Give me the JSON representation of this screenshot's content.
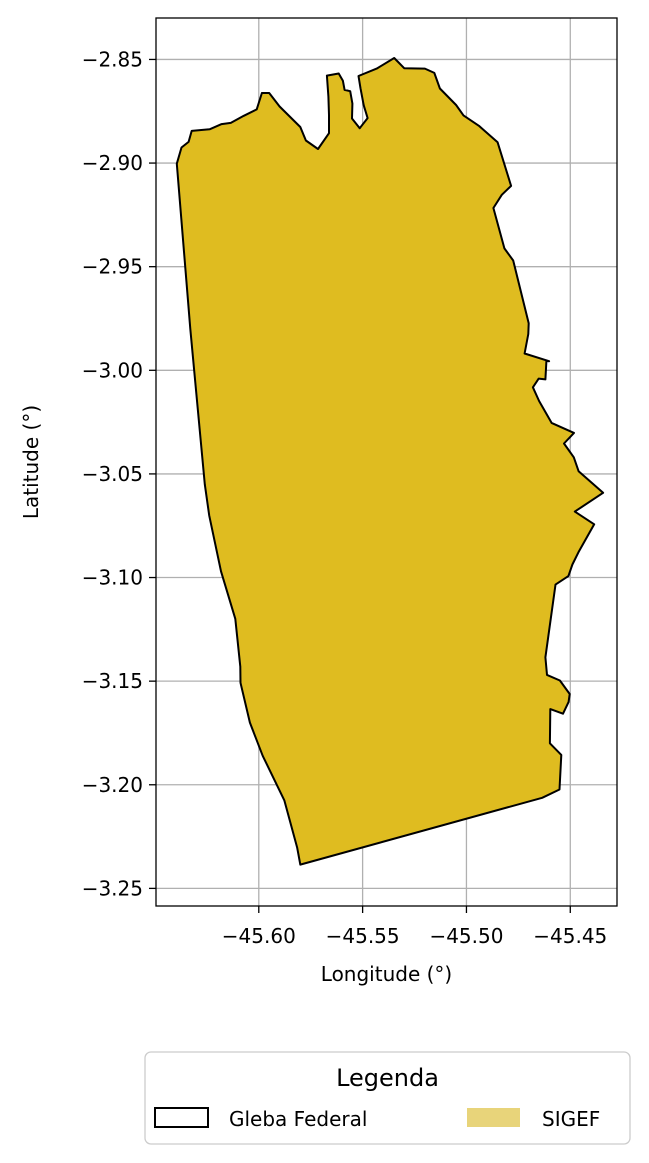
{
  "chart_data": {
    "type": "map",
    "xlabel": "Longitude (°)",
    "ylabel": "Latitude (°)",
    "xlim": [
      -45.6495,
      -45.4275
    ],
    "ylim": [
      -3.2585,
      -2.83
    ],
    "xticks": [
      -45.6,
      -45.55,
      -45.5,
      -45.45
    ],
    "xtick_labels": [
      "−45.60",
      "−45.55",
      "−45.50",
      "−45.45"
    ],
    "yticks": [
      -2.85,
      -2.9,
      -2.95,
      -3.0,
      -3.05,
      -3.1,
      -3.15,
      -3.2,
      -3.25
    ],
    "ytick_labels": [
      "−2.85",
      "−2.90",
      "−2.95",
      "−3.00",
      "−3.05",
      "−3.10",
      "−3.15",
      "−3.20",
      "−3.25"
    ],
    "grid": true,
    "legend": {
      "title": "Legenda",
      "placement": "bottom",
      "entries": [
        {
          "label": "Gleba Federal",
          "style": "outline",
          "color": "#000000"
        },
        {
          "label": "SIGEF",
          "style": "fill",
          "color": "#e8d47a"
        }
      ]
    },
    "polygon": {
      "fill": "#dfbc20",
      "stroke": "#000000",
      "coords": [
        [
          -45.6395,
          -2.9003
        ],
        [
          -45.6372,
          -2.8925
        ],
        [
          -45.6338,
          -2.8898
        ],
        [
          -45.6323,
          -2.8845
        ],
        [
          -45.6237,
          -2.8837
        ],
        [
          -45.6179,
          -2.8812
        ],
        [
          -45.6135,
          -2.8806
        ],
        [
          -45.6072,
          -2.8772
        ],
        [
          -45.601,
          -2.8741
        ],
        [
          -45.5985,
          -2.8662
        ],
        [
          -45.595,
          -2.8662
        ],
        [
          -45.59,
          -2.8727
        ],
        [
          -45.58,
          -2.8826
        ],
        [
          -45.5773,
          -2.8891
        ],
        [
          -45.5715,
          -2.8932
        ],
        [
          -45.5662,
          -2.8856
        ],
        [
          -45.5662,
          -2.8768
        ],
        [
          -45.5665,
          -2.868
        ],
        [
          -45.5672,
          -2.8578
        ],
        [
          -45.5615,
          -2.8568
        ],
        [
          -45.5595,
          -2.8603
        ],
        [
          -45.5587,
          -2.8647
        ],
        [
          -45.556,
          -2.8653
        ],
        [
          -45.5549,
          -2.8713
        ],
        [
          -45.5551,
          -2.8785
        ],
        [
          -45.5514,
          -2.8832
        ],
        [
          -45.5476,
          -2.8783
        ],
        [
          -45.5495,
          -2.8721
        ],
        [
          -45.551,
          -2.8639
        ],
        [
          -45.552,
          -2.858
        ],
        [
          -45.5432,
          -2.8544
        ],
        [
          -45.5348,
          -2.8493
        ],
        [
          -45.53,
          -2.8542
        ],
        [
          -45.52,
          -2.8544
        ],
        [
          -45.5155,
          -2.8565
        ],
        [
          -45.5128,
          -2.864
        ],
        [
          -45.505,
          -2.872
        ],
        [
          -45.5014,
          -2.877
        ],
        [
          -45.494,
          -2.882
        ],
        [
          -45.485,
          -2.89
        ],
        [
          -45.4785,
          -2.911
        ],
        [
          -45.483,
          -2.9153
        ],
        [
          -45.487,
          -2.9217
        ],
        [
          -45.4817,
          -2.9412
        ],
        [
          -45.4775,
          -2.947
        ],
        [
          -45.47,
          -2.9773
        ],
        [
          -45.4702,
          -2.9825
        ],
        [
          -45.472,
          -2.9919
        ],
        [
          -45.4602,
          -2.9956
        ],
        [
          -45.4615,
          -2.9955
        ],
        [
          -45.462,
          -3.0044
        ],
        [
          -45.4652,
          -3.004
        ],
        [
          -45.468,
          -3.0082
        ],
        [
          -45.465,
          -3.0148
        ],
        [
          -45.459,
          -3.0254
        ],
        [
          -45.4482,
          -3.0302
        ],
        [
          -45.453,
          -3.0353
        ],
        [
          -45.4483,
          -3.042
        ],
        [
          -45.446,
          -3.0487
        ],
        [
          -45.4342,
          -3.0591
        ],
        [
          -45.4478,
          -3.0682
        ],
        [
          -45.4385,
          -3.0743
        ],
        [
          -45.4458,
          -3.0873
        ],
        [
          -45.449,
          -3.0937
        ],
        [
          -45.4509,
          -3.0993
        ],
        [
          -45.4571,
          -3.1034
        ],
        [
          -45.462,
          -3.1385
        ],
        [
          -45.4612,
          -3.147
        ],
        [
          -45.455,
          -3.1497
        ],
        [
          -45.4503,
          -3.1562
        ],
        [
          -45.4508,
          -3.16
        ],
        [
          -45.4535,
          -3.1657
        ],
        [
          -45.4596,
          -3.1635
        ],
        [
          -45.4598,
          -3.18
        ],
        [
          -45.4543,
          -3.1856
        ],
        [
          -45.4552,
          -3.2023
        ],
        [
          -45.4635,
          -3.2063
        ],
        [
          -45.58,
          -3.2385
        ],
        [
          -45.5815,
          -3.2304
        ],
        [
          -45.5877,
          -3.2075
        ],
        [
          -45.5981,
          -3.186
        ],
        [
          -45.6043,
          -3.17
        ],
        [
          -45.6088,
          -3.1508
        ],
        [
          -45.6089,
          -3.143
        ],
        [
          -45.6113,
          -3.1199
        ],
        [
          -45.6182,
          -3.097
        ],
        [
          -45.6239,
          -3.07
        ],
        [
          -45.626,
          -3.055
        ],
        [
          -45.633,
          -2.98
        ],
        [
          -45.6395,
          -2.9003
        ]
      ]
    }
  }
}
